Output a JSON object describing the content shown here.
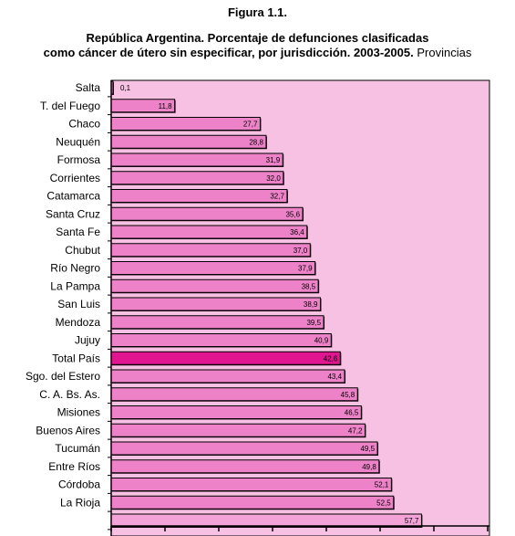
{
  "figure_number": "Figura 1.1.",
  "title_line1": "República Argentina. Porcentaje de defunciones clasificadas",
  "title_line2_bold": "como cáncer de útero sin especificar, por jurisdicción. 2003-2005.",
  "title_line2_normal": "Provincias",
  "colors": {
    "plot_background": "#f7c1e3",
    "bar_fill": "#ee82c8",
    "highlight_fill": "#e0158f",
    "bar_outline": "#000000",
    "last_bar_fill": "#f4a3d8"
  },
  "chart_data": {
    "type": "bar",
    "orientation": "horizontal",
    "categories": [
      "Salta",
      "T. del Fuego",
      "Chaco",
      "Neuquén",
      "Formosa",
      "Corrientes",
      "Catamarca",
      "Santa Cruz",
      "Santa Fe",
      "Chubut",
      "Río Negro",
      "La Pampa",
      "San Luis",
      "Mendoza",
      "Jujuy",
      "Total País",
      "Sgo. del Estero",
      "C. A. Bs. As.",
      "Misiones",
      "Buenos Aires",
      "Tucumán",
      "Entre Ríos",
      "Córdoba",
      "La Rioja",
      ""
    ],
    "values": [
      0.1,
      11.8,
      27.7,
      28.8,
      31.9,
      32.0,
      32.7,
      35.6,
      36.4,
      37.0,
      37.9,
      38.5,
      38.9,
      39.5,
      40.9,
      42.6,
      43.4,
      45.8,
      46.5,
      47.2,
      49.5,
      49.8,
      52.1,
      52.5,
      57.7
    ],
    "value_labels": [
      "0,1",
      "11,8",
      "27,7",
      "28,8",
      "31,9",
      "32,0",
      "32,7",
      "35,6",
      "36,4",
      "37,0",
      "37,9",
      "38,5",
      "38,9",
      "39,5",
      "40,9",
      "42,6",
      "43,4",
      "45,8",
      "46,5",
      "47,2",
      "49,5",
      "49,8",
      "52,1",
      "52,5",
      "57,7"
    ],
    "highlight_category": "Total País",
    "xlim": [
      0,
      70
    ],
    "grid": false
  }
}
